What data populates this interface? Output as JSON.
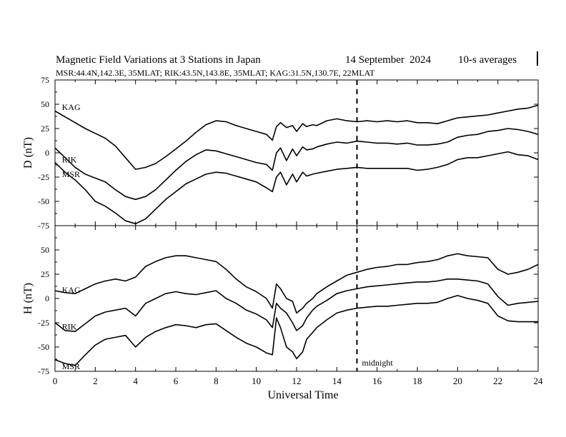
{
  "header": {
    "title": "Magnetic Field Variations at 3 Stations in Japan",
    "date": "14 September",
    "year": "2024",
    "averaging": "10-s averages",
    "stations": "MSR:44.4N,142.3E, 35MLAT;  RIK:43.5N,143.8E, 35MLAT;  KAG:31.5N,130.7E, 22MLAT"
  },
  "chart_data": [
    {
      "type": "line",
      "panel": "D",
      "ylabel": "D (nT)",
      "xlabel": "",
      "xlim": [
        0,
        24
      ],
      "ylim": [
        -75,
        75
      ],
      "yticks": [
        75,
        50,
        25,
        0,
        -25,
        -50,
        -75
      ],
      "series": [
        {
          "name": "KAG",
          "label_pos": [
            0.2,
            47
          ],
          "x": [
            0,
            0.5,
            1,
            1.5,
            2,
            2.5,
            3,
            3.5,
            4,
            4.5,
            5,
            5.5,
            6,
            6.5,
            7,
            7.5,
            8,
            8.5,
            9,
            9.5,
            10,
            10.5,
            10.8,
            11,
            11.2,
            11.5,
            11.8,
            12,
            12.3,
            12.5,
            12.8,
            13,
            13.5,
            14,
            14.5,
            15,
            15.5,
            16,
            16.5,
            17,
            17.5,
            18,
            18.5,
            19,
            19.5,
            20,
            20.5,
            21,
            21.5,
            22,
            22.5,
            23,
            23.5,
            24
          ],
          "y": [
            43,
            37,
            31,
            25,
            20,
            15,
            7,
            -5,
            -17,
            -15,
            -11,
            -4,
            4,
            12,
            21,
            29,
            33,
            32,
            28,
            25,
            22,
            19,
            13,
            27,
            31,
            26,
            28,
            22,
            30,
            27,
            29,
            28,
            33,
            35,
            33,
            32,
            33,
            32,
            33,
            32,
            33,
            31,
            31,
            30,
            33,
            36,
            37,
            38,
            39,
            41,
            43,
            45,
            46,
            49
          ]
        },
        {
          "name": "RIK",
          "label_pos": [
            0.2,
            -7
          ],
          "x": [
            0,
            0.5,
            1,
            1.5,
            2,
            2.5,
            3,
            3.5,
            4,
            4.5,
            5,
            5.5,
            6,
            6.5,
            7,
            7.5,
            8,
            8.5,
            9,
            9.5,
            10,
            10.5,
            10.8,
            11,
            11.2,
            11.5,
            11.8,
            12,
            12.3,
            12.5,
            12.8,
            13,
            13.5,
            14,
            14.5,
            15,
            15.5,
            16,
            16.5,
            17,
            17.5,
            18,
            18.5,
            19,
            19.5,
            20,
            20.5,
            21,
            21.5,
            22,
            22.5,
            23,
            23.5,
            24
          ],
          "y": [
            5,
            -5,
            -15,
            -22,
            -26,
            -30,
            -38,
            -45,
            -48,
            -45,
            -38,
            -28,
            -18,
            -9,
            -2,
            3,
            2,
            -1,
            -4,
            -7,
            -10,
            -12,
            -18,
            0,
            5,
            -8,
            4,
            -3,
            6,
            3,
            4,
            6,
            9,
            11,
            10,
            12,
            11,
            10,
            10,
            9,
            10,
            8,
            8,
            9,
            11,
            16,
            18,
            19,
            22,
            23,
            25,
            24,
            22,
            19
          ]
        },
        {
          "name": "MSR",
          "label_pos": [
            0.2,
            -22
          ],
          "x": [
            0,
            0.5,
            1,
            1.5,
            2,
            2.5,
            3,
            3.5,
            4,
            4.5,
            5,
            5.5,
            6,
            6.5,
            7,
            7.5,
            8,
            8.5,
            9,
            9.5,
            10,
            10.5,
            10.8,
            11,
            11.2,
            11.5,
            11.8,
            12,
            12.3,
            12.5,
            12.8,
            13,
            13.5,
            14,
            14.5,
            15,
            15.5,
            16,
            16.5,
            17,
            17.5,
            18,
            18.5,
            19,
            19.5,
            20,
            20.5,
            21,
            21.5,
            22,
            22.5,
            23,
            23.5,
            24
          ],
          "y": [
            -10,
            -20,
            -28,
            -38,
            -50,
            -55,
            -62,
            -70,
            -73,
            -68,
            -58,
            -48,
            -40,
            -32,
            -27,
            -22,
            -20,
            -21,
            -24,
            -27,
            -30,
            -36,
            -40,
            -25,
            -20,
            -33,
            -22,
            -30,
            -20,
            -24,
            -22,
            -21,
            -19,
            -17,
            -16,
            -15,
            -16,
            -16,
            -16,
            -16,
            -16,
            -18,
            -17,
            -15,
            -12,
            -7,
            -5,
            -5,
            -3,
            -1,
            1,
            -2,
            -3,
            -7
          ]
        }
      ]
    },
    {
      "type": "line",
      "panel": "H",
      "ylabel": "H (nT)",
      "xlabel": "Universal Time",
      "xlim": [
        0,
        24
      ],
      "ylim": [
        -75,
        75
      ],
      "xticks": [
        0,
        2,
        4,
        6,
        8,
        10,
        12,
        14,
        16,
        18,
        20,
        22,
        24
      ],
      "yticks": [
        50,
        25,
        0,
        -25,
        -50,
        -75
      ],
      "annotation": {
        "text": "midnight",
        "x": 15.1,
        "y": -69
      },
      "midnight_x": 15,
      "series": [
        {
          "name": "KAG",
          "label_pos": [
            0.2,
            9
          ],
          "x": [
            0,
            0.5,
            1,
            1.5,
            2,
            2.5,
            3,
            3.5,
            4,
            4.5,
            5,
            5.5,
            6,
            6.5,
            7,
            7.5,
            8,
            8.5,
            9,
            9.5,
            10,
            10.5,
            10.8,
            11,
            11.2,
            11.5,
            11.8,
            12,
            12.3,
            12.5,
            12.8,
            13,
            13.5,
            14,
            14.5,
            15,
            15.5,
            16,
            16.5,
            17,
            17.5,
            18,
            18.5,
            19,
            19.5,
            20,
            20.5,
            21,
            21.5,
            22,
            22.5,
            23,
            23.5,
            24
          ],
          "y": [
            8,
            6,
            5,
            10,
            15,
            18,
            20,
            18,
            22,
            33,
            38,
            42,
            44,
            44,
            42,
            40,
            38,
            30,
            20,
            12,
            7,
            0,
            -10,
            15,
            10,
            0,
            -3,
            -15,
            -10,
            -5,
            0,
            5,
            12,
            18,
            24,
            27,
            30,
            32,
            33,
            35,
            35,
            37,
            38,
            40,
            44,
            46,
            44,
            43,
            42,
            30,
            25,
            27,
            30,
            35
          ]
        },
        {
          "name": "RIK",
          "label_pos": [
            0.2,
            -29
          ],
          "x": [
            0,
            0.5,
            1,
            1.5,
            2,
            2.5,
            3,
            3.5,
            4,
            4.5,
            5,
            5.5,
            6,
            6.5,
            7,
            7.5,
            8,
            8.5,
            9,
            9.5,
            10,
            10.5,
            10.8,
            11,
            11.2,
            11.5,
            11.8,
            12,
            12.3,
            12.5,
            12.8,
            13,
            13.5,
            14,
            14.5,
            15,
            15.5,
            16,
            16.5,
            17,
            17.5,
            18,
            18.5,
            19,
            19.5,
            20,
            20.5,
            21,
            21.5,
            22,
            22.5,
            23,
            23.5,
            24
          ],
          "y": [
            -25,
            -33,
            -34,
            -26,
            -18,
            -14,
            -12,
            -10,
            -18,
            -5,
            0,
            5,
            7,
            5,
            4,
            6,
            8,
            0,
            -5,
            -12,
            -16,
            -22,
            -30,
            -5,
            -10,
            -15,
            -25,
            -33,
            -28,
            -20,
            -12,
            -8,
            -2,
            5,
            8,
            10,
            12,
            13,
            14,
            15,
            16,
            17,
            17,
            18,
            20,
            20,
            19,
            18,
            15,
            2,
            -7,
            -5,
            -4,
            -3
          ]
        },
        {
          "name": "MSR",
          "label_pos": [
            0.2,
            -70
          ],
          "x": [
            0,
            0.5,
            1,
            1.5,
            2,
            2.5,
            3,
            3.5,
            4,
            4.5,
            5,
            5.5,
            6,
            6.5,
            7,
            7.5,
            8,
            8.5,
            9,
            9.5,
            10,
            10.5,
            10.8,
            11,
            11.2,
            11.5,
            11.8,
            12,
            12.3,
            12.5,
            12.8,
            13,
            13.5,
            14,
            14.5,
            15,
            15.5,
            16,
            16.5,
            17,
            17.5,
            18,
            18.5,
            19,
            19.5,
            20,
            20.5,
            21,
            21.5,
            22,
            22.5,
            23,
            23.5,
            24
          ],
          "y": [
            -63,
            -67,
            -69,
            -58,
            -48,
            -42,
            -40,
            -38,
            -50,
            -40,
            -34,
            -30,
            -27,
            -28,
            -30,
            -27,
            -26,
            -33,
            -40,
            -46,
            -50,
            -56,
            -58,
            -20,
            -30,
            -50,
            -55,
            -62,
            -55,
            -42,
            -35,
            -30,
            -22,
            -15,
            -12,
            -10,
            -9,
            -8,
            -8,
            -7,
            -6,
            -5,
            -5,
            -4,
            0,
            3,
            0,
            -2,
            -5,
            -18,
            -23,
            -24,
            -24,
            -24
          ]
        }
      ]
    }
  ]
}
